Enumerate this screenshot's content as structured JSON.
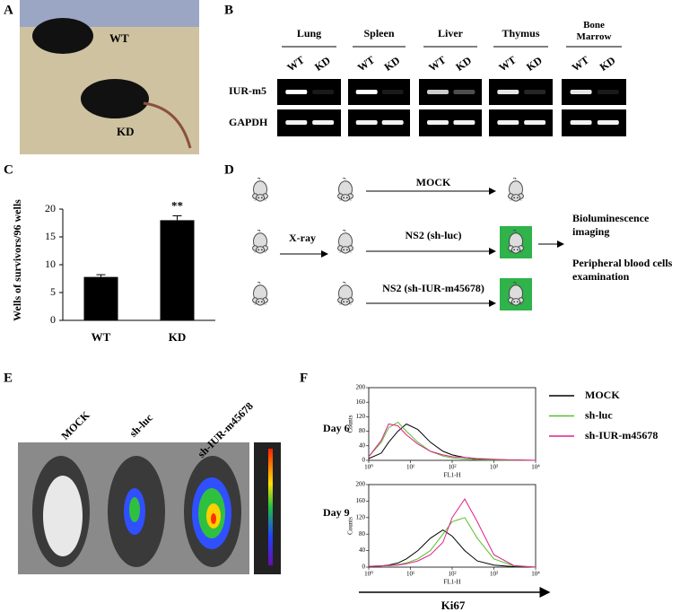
{
  "figure": {
    "panel_labels": [
      "A",
      "B",
      "C",
      "D",
      "E",
      "F"
    ],
    "panel_a": {
      "labels": [
        "WT",
        "KD"
      ]
    },
    "panel_b": {
      "tissues": [
        "Lung",
        "Spleen",
        "Liver",
        "Thymus",
        "Bone Marrow"
      ],
      "lanes": [
        "WT",
        "KD"
      ],
      "rows": [
        "IUR-m5",
        "GAPDH"
      ]
    },
    "panel_d": {
      "treatments": [
        "MOCK",
        "NS2 (sh-luc)",
        "NS2 (sh-IUR-m45678)"
      ],
      "step": "X-ray",
      "outcomes": [
        "Bioluminescence imaging",
        "Peripheral blood cells examination"
      ]
    },
    "panel_e": {
      "groups": [
        "MOCK",
        "sh-luc",
        "sh-IUR-m45678"
      ]
    },
    "panel_f": {
      "days": [
        "Day 6",
        "Day 9"
      ],
      "marker": "Ki67"
    }
  },
  "chart_data": [
    {
      "type": "bar",
      "ylabel": "Wells of survivors/96 wells",
      "categories": [
        "WT",
        "KD"
      ],
      "values": [
        7.8,
        18
      ],
      "errors": [
        0.4,
        0.8
      ],
      "color": "#000000",
      "ylim": [
        0,
        20
      ],
      "yticks": [
        0,
        5,
        10,
        15,
        20
      ],
      "annotation": "**"
    },
    {
      "type": "line",
      "ylabel": "Counts",
      "xlabel": "FL1-H",
      "log_x": true,
      "x": [
        1,
        2,
        3,
        5,
        8,
        15,
        30,
        60,
        100,
        200,
        400,
        1000,
        3000,
        10000
      ],
      "xlim": [
        1,
        10000
      ],
      "xticks": [
        {
          "value": 1,
          "label": "10⁰"
        },
        {
          "value": 10,
          "label": "10¹"
        },
        {
          "value": 100,
          "label": "10²"
        },
        {
          "value": 1000,
          "label": "10³"
        },
        {
          "value": 10000,
          "label": "10⁴"
        }
      ],
      "ylim": [
        0,
        200
      ],
      "yticks": [
        0,
        40,
        80,
        120,
        160,
        200
      ],
      "series": [
        {
          "name": "MOCK",
          "color": "#000000",
          "values": [
            5,
            20,
            50,
            80,
            100,
            85,
            50,
            25,
            15,
            8,
            4,
            2,
            1,
            0
          ]
        },
        {
          "name": "sh-luc",
          "color": "#55c02a",
          "values": [
            10,
            50,
            90,
            105,
            80,
            50,
            25,
            12,
            7,
            4,
            2,
            1,
            0,
            0
          ]
        },
        {
          "name": "sh-IUR-m45678",
          "color": "#e0208a",
          "values": [
            10,
            55,
            100,
            95,
            70,
            45,
            25,
            15,
            10,
            8,
            5,
            3,
            1,
            0
          ]
        }
      ]
    },
    {
      "type": "line",
      "ylabel": "Counts",
      "xlabel": "FL1-H",
      "log_x": true,
      "x": [
        1,
        2,
        3,
        5,
        8,
        15,
        30,
        60,
        100,
        200,
        400,
        1000,
        3000,
        10000
      ],
      "xlim": [
        1,
        10000
      ],
      "xticks": [
        {
          "value": 1,
          "label": "10⁰"
        },
        {
          "value": 10,
          "label": "10¹"
        },
        {
          "value": 100,
          "label": "10²"
        },
        {
          "value": 1000,
          "label": "10³"
        },
        {
          "value": 10000,
          "label": "10⁴"
        }
      ],
      "ylim": [
        0,
        200
      ],
      "yticks": [
        0,
        40,
        80,
        120,
        160,
        200
      ],
      "series": [
        {
          "color": "#000000",
          "values": [
            2,
            3,
            5,
            10,
            20,
            40,
            70,
            90,
            75,
            40,
            15,
            5,
            1,
            0
          ]
        },
        {
          "color": "#55c02a",
          "values": [
            2,
            3,
            4,
            6,
            10,
            20,
            40,
            80,
            110,
            120,
            70,
            20,
            3,
            0
          ]
        },
        {
          "color": "#e0208a",
          "values": [
            2,
            3,
            4,
            5,
            8,
            15,
            30,
            60,
            120,
            165,
            110,
            30,
            4,
            0
          ]
        }
      ]
    }
  ]
}
